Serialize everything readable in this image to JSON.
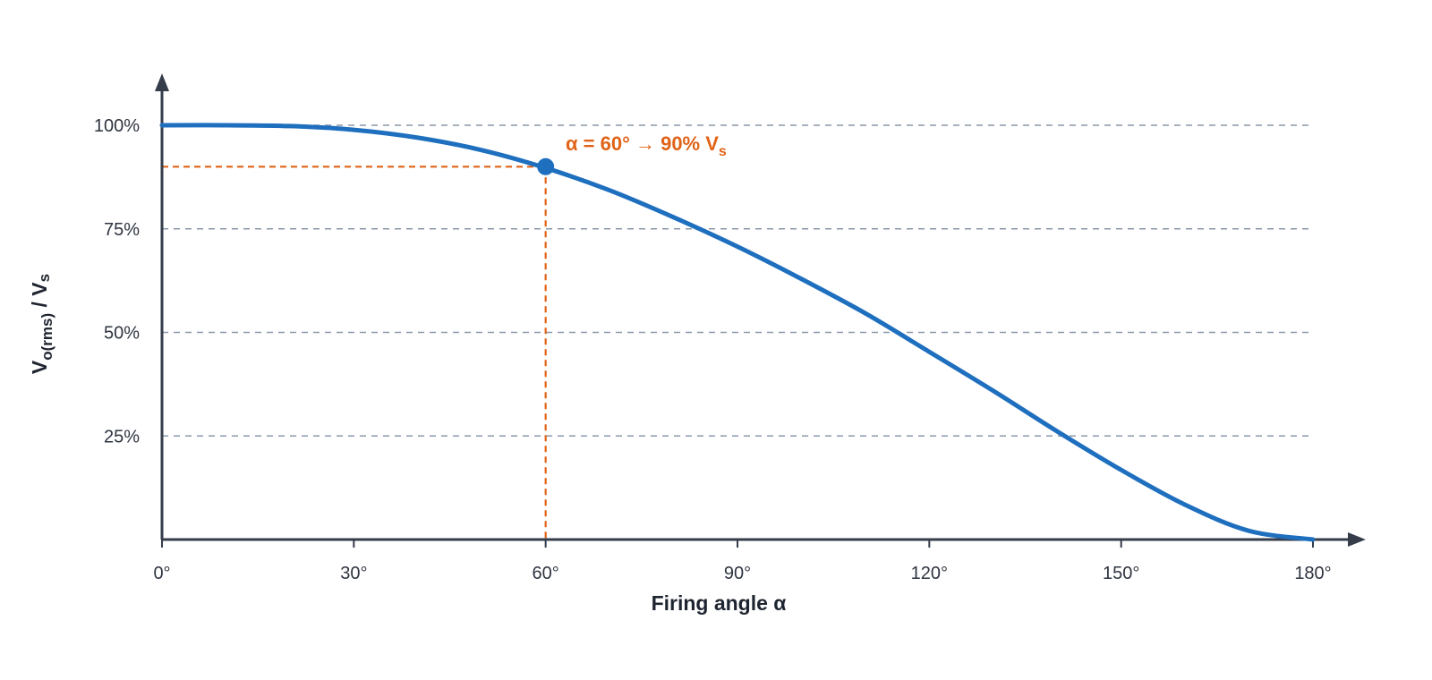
{
  "chart_data": {
    "type": "line",
    "title": "",
    "xlabel": "Firing angle  α",
    "ylabel": {
      "main": "V",
      "sub": "o(rms)",
      "rest": " / V",
      "rest_sub": "s"
    },
    "xlim": [
      0,
      180
    ],
    "ylim": [
      0,
      100
    ],
    "x_ticks": [
      0,
      30,
      60,
      90,
      120,
      150,
      180
    ],
    "x_tick_labels": [
      "0°",
      "30°",
      "60°",
      "90°",
      "120°",
      "150°",
      "180°"
    ],
    "y_ticks": [
      25,
      50,
      75,
      100
    ],
    "y_tick_labels": [
      "25%",
      "50%",
      "75%",
      "100%"
    ],
    "grid": "horizontal dashed",
    "series": [
      {
        "x": [
          0,
          10,
          20,
          30,
          40,
          50,
          60,
          70,
          80,
          90,
          100,
          110,
          120,
          130,
          140,
          150,
          160,
          170,
          180
        ],
        "values": [
          100.0,
          100.0,
          99.8,
          98.9,
          97.0,
          94.0,
          89.7,
          84.3,
          77.8,
          70.7,
          62.9,
          54.6,
          45.3,
          35.9,
          26.1,
          16.8,
          8.4,
          2.1,
          0.0
        ],
        "color": "#1f6fbf"
      }
    ],
    "annotation": {
      "x": 60,
      "y": 90,
      "text_main": "α = 60° → 90% V",
      "text_sub": "s",
      "color": "#e06317"
    },
    "colors": {
      "axis": "#353c4a",
      "grid": "#8a97a8",
      "line": "#1f6fbf",
      "highlight": "#e06317"
    }
  }
}
